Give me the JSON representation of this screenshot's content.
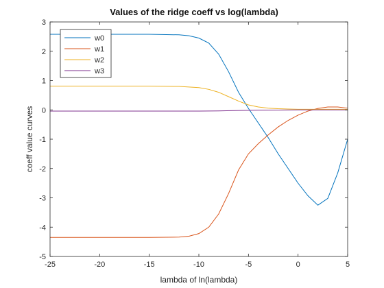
{
  "chart_data": {
    "type": "line",
    "title": "Values of the ridge coeff vs log(lambda)",
    "xlabel": "lambda of ln(lambda)",
    "ylabel": "coeff value curves",
    "xlim": [
      -25,
      5
    ],
    "ylim": [
      -5,
      3
    ],
    "xticks": [
      -25,
      -20,
      -15,
      -10,
      -5,
      0,
      5
    ],
    "yticks": [
      -5,
      -4,
      -3,
      -2,
      -1,
      0,
      1,
      2,
      3
    ],
    "grid": false,
    "legend": "top-left",
    "series": [
      {
        "name": "w0",
        "color": "#0072BD",
        "x": [
          -25,
          -20,
          -15,
          -12,
          -11,
          -10,
          -9,
          -8,
          -7,
          -6,
          -5,
          -4,
          -3,
          -2,
          -1,
          0,
          1,
          2,
          3,
          4,
          5
        ],
        "y": [
          2.58,
          2.58,
          2.58,
          2.56,
          2.53,
          2.45,
          2.28,
          1.9,
          1.3,
          0.6,
          0.05,
          -0.45,
          -0.95,
          -1.5,
          -2.0,
          -2.5,
          -2.93,
          -3.25,
          -3.02,
          -2.15,
          -1.0
        ]
      },
      {
        "name": "w1",
        "color": "#D95319",
        "x": [
          -25,
          -20,
          -15,
          -12,
          -11,
          -10,
          -9,
          -8,
          -7,
          -6,
          -5,
          -4,
          -3,
          -2,
          -1,
          0,
          1,
          2,
          3,
          4,
          5
        ],
        "y": [
          -4.35,
          -4.35,
          -4.35,
          -4.34,
          -4.31,
          -4.22,
          -4.0,
          -3.55,
          -2.85,
          -2.05,
          -1.5,
          -1.15,
          -0.85,
          -0.58,
          -0.36,
          -0.18,
          -0.04,
          0.05,
          0.1,
          0.1,
          0.06
        ]
      },
      {
        "name": "w2",
        "color": "#EDB120",
        "x": [
          -25,
          -20,
          -15,
          -12,
          -10,
          -9,
          -8,
          -7,
          -6,
          -5,
          -4,
          -3,
          -2,
          -1,
          0,
          1,
          2,
          3,
          4,
          5
        ],
        "y": [
          0.81,
          0.81,
          0.81,
          0.8,
          0.76,
          0.7,
          0.6,
          0.45,
          0.3,
          0.17,
          0.1,
          0.06,
          0.04,
          0.03,
          0.02,
          0.02,
          0.02,
          0.02,
          0.02,
          0.02
        ]
      },
      {
        "name": "w3",
        "color": "#7E2F8E",
        "x": [
          -25,
          -15,
          -10,
          -8,
          -6,
          -4,
          -2,
          0,
          2,
          5
        ],
        "y": [
          -0.04,
          -0.04,
          -0.04,
          -0.035,
          -0.02,
          -0.01,
          -0.005,
          0.0,
          0.0,
          0.0
        ]
      }
    ]
  }
}
